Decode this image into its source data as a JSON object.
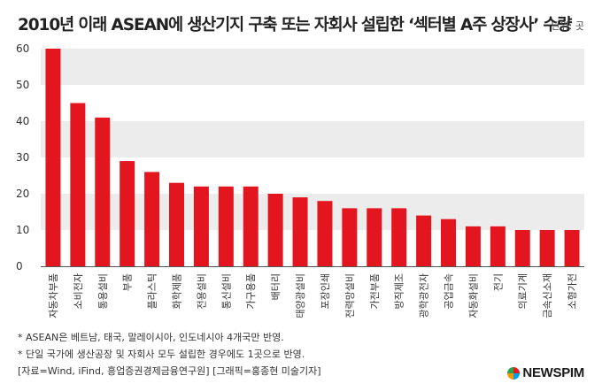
{
  "header": {
    "title": "2010년 이래 ASEAN에 생산기지 구축 또는 자회사 설립한 ‘섹터별 A주 상장사’ 수량",
    "unit": "단위: 곳"
  },
  "chart_data": {
    "type": "bar",
    "categories": [
      "자동차부품",
      "소비전자",
      "통용설비",
      "부품",
      "플라스틱",
      "화학제품",
      "전용설비",
      "통신설비",
      "가구용품",
      "배터리",
      "태양광설비",
      "포장인쇄",
      "전력망설비",
      "가전부품",
      "방직제조",
      "광학광전자",
      "공업금속",
      "자동화설비",
      "전기",
      "의료기계",
      "금속신소재",
      "소형가전"
    ],
    "values": [
      60,
      45,
      41,
      29,
      26,
      23,
      22,
      22,
      22,
      20,
      19,
      18,
      16,
      16,
      16,
      14,
      13,
      11,
      11,
      10,
      10,
      10
    ],
    "ylim": [
      0,
      60
    ],
    "yticks": [
      0,
      10,
      20,
      30,
      40,
      50,
      60
    ],
    "bar_color": "#e3161f",
    "band_color": "#ececec"
  },
  "notes": [
    "* ASEAN은 베트남, 태국, 말레이시아, 인도네시아 4개국만 반영.",
    "* 단일 국가에 생산공장 및 자회사 모두 설립한 경우에도 1곳으로 반영.",
    "[자료=Wind, iFind, 흥업증권경제금융연구원] [그래픽=홍종현 미술기자]"
  ],
  "brand": {
    "name": "NEWSPIM"
  }
}
